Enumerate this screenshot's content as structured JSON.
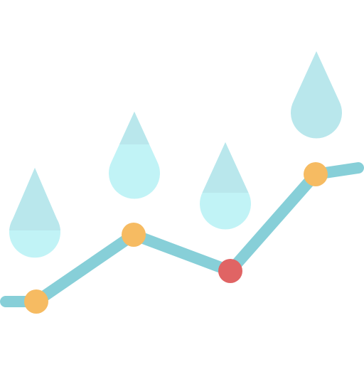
{
  "icon": {
    "name": "rainfall-trend-icon",
    "colors": {
      "line": "#87cfd8",
      "point_default": "#f6bb62",
      "point_highlight": "#e06464",
      "drop_top": "#b9e7ec",
      "drop_bottom": "#c1f3f6"
    },
    "drops": [
      {
        "id": "drop-1"
      },
      {
        "id": "drop-2"
      },
      {
        "id": "drop-3"
      },
      {
        "id": "drop-4"
      }
    ],
    "points": [
      {
        "id": "point-1",
        "highlight": false
      },
      {
        "id": "point-2",
        "highlight": false
      },
      {
        "id": "point-3",
        "highlight": true
      },
      {
        "id": "point-4",
        "highlight": false
      }
    ]
  }
}
